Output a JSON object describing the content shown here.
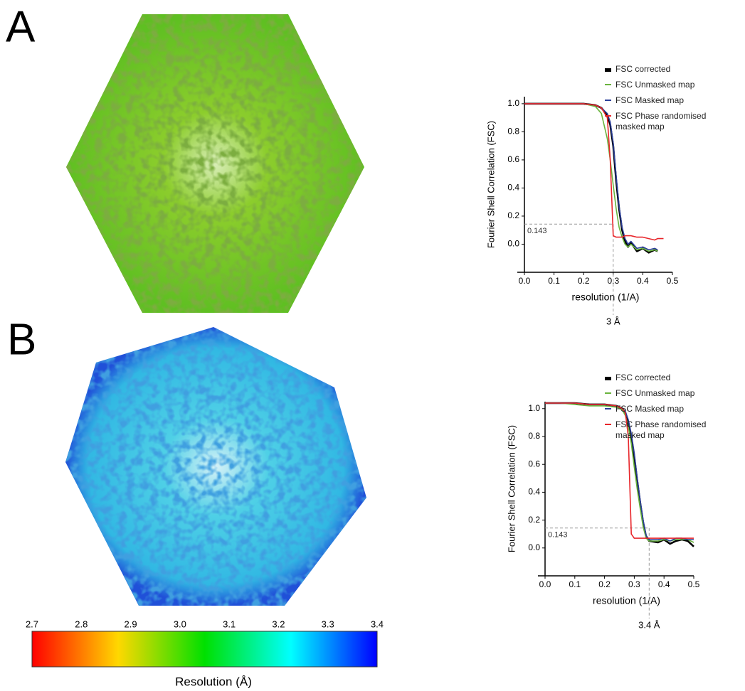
{
  "panel_labels": [
    "A",
    "B"
  ],
  "colorbar": {
    "label": "Resolution (Å)",
    "lim": [
      2.7,
      3.4
    ],
    "ticks": [
      2.7,
      2.8,
      2.9,
      {
        "value": 3,
        "label": "3.0"
      },
      3.1,
      3.2,
      3.3,
      3.4
    ],
    "colors": [
      "#ff0000",
      "#ffd800",
      "#00e000",
      "#00ffff",
      "#0000ff"
    ]
  },
  "chart_data": [
    {
      "type": "line",
      "xlabel": "resolution (1/A)",
      "ylabel": "Fourier Shell Correlation (FSC)",
      "x": [
        0,
        0.05,
        0.1,
        0.15,
        0.2,
        0.24,
        0.26,
        0.28,
        0.29,
        0.3,
        0.31,
        0.32,
        0.33,
        0.34,
        0.35,
        0.36,
        0.38,
        0.4,
        0.42,
        0.44,
        0.45,
        0.47
      ],
      "xlim": [
        0,
        0.5
      ],
      "xticks": [
        {
          "value": 0,
          "label": "0.0"
        },
        0.1,
        0.2,
        0.3,
        0.4,
        0.5
      ],
      "ylim": [
        -0.2,
        1.05
      ],
      "yticks": [
        {
          "value": 0,
          "label": "0.0"
        },
        0.2,
        0.4,
        0.6,
        0.8,
        {
          "value": 1,
          "label": "1.0"
        }
      ],
      "threshold": 0.143,
      "resolution_marker": {
        "x": 0.3,
        "label": "3 Å"
      },
      "series": [
        {
          "name": "FSC corrected",
          "color": "#000000",
          "values": [
            1,
            1,
            1,
            1,
            1,
            0.99,
            0.97,
            0.92,
            0.85,
            0.7,
            0.45,
            0.25,
            0.1,
            0.02,
            -0.02,
            0.01,
            -0.05,
            -0.03,
            -0.06,
            -0.04,
            -0.05,
            null
          ]
        },
        {
          "name": "FSC Unmasked map",
          "color": "#6ab43e",
          "values": [
            1,
            1,
            1,
            1,
            1,
            0.98,
            0.93,
            0.75,
            0.6,
            0.42,
            0.25,
            0.12,
            0.05,
            0,
            -0.02,
            0,
            -0.04,
            -0.03,
            -0.05,
            -0.04,
            -0.05,
            null
          ]
        },
        {
          "name": "FSC Masked map",
          "color": "#2b3f99",
          "values": [
            1,
            1,
            1,
            1,
            1,
            0.99,
            0.97,
            0.93,
            0.87,
            0.72,
            0.48,
            0.27,
            0.12,
            0.04,
            0,
            0.02,
            -0.03,
            -0.02,
            -0.04,
            -0.03,
            -0.04,
            null
          ]
        },
        {
          "name": "FSC Phase randomised masked map",
          "color": "#e8262b",
          "values": [
            1,
            1,
            1,
            1,
            1,
            0.99,
            0.97,
            0.9,
            0.6,
            0.06,
            0.05,
            0.05,
            0.05,
            0.06,
            0.06,
            0.06,
            0.05,
            0.05,
            0.04,
            0.03,
            0.04,
            0.04
          ]
        }
      ]
    },
    {
      "type": "line",
      "xlabel": "resolution (1/A)",
      "ylabel": "Fourier Shell Correlation (FSC)",
      "x": [
        0,
        0.05,
        0.1,
        0.15,
        0.2,
        0.24,
        0.26,
        0.27,
        0.28,
        0.29,
        0.3,
        0.31,
        0.32,
        0.33,
        0.34,
        0.35,
        0.38,
        0.4,
        0.42,
        0.44,
        0.46,
        0.48,
        0.5
      ],
      "xlim": [
        0,
        0.5
      ],
      "xticks": [
        {
          "value": 0,
          "label": "0.0"
        },
        0.1,
        0.2,
        0.3,
        0.4,
        0.5
      ],
      "ylim": [
        -0.2,
        1.05
      ],
      "yticks": [
        {
          "value": 0,
          "label": "0.0"
        },
        0.2,
        0.4,
        0.6,
        0.8,
        {
          "value": 1,
          "label": "1.0"
        }
      ],
      "threshold": 0.143,
      "resolution_marker": {
        "x": 0.35,
        "label": "3.4 Å"
      },
      "series": [
        {
          "name": "FSC corrected",
          "color": "#000000",
          "values": [
            1.04,
            1.04,
            1.04,
            1.03,
            1.03,
            1.02,
            1,
            0.97,
            0.9,
            0.8,
            0.65,
            0.48,
            0.32,
            0.18,
            0.08,
            0.05,
            0.04,
            0.06,
            0.03,
            0.05,
            0.06,
            0.05,
            0.01
          ]
        },
        {
          "name": "FSC Unmasked map",
          "color": "#6ab43e",
          "values": [
            1.04,
            1.04,
            1.03,
            1.02,
            1.02,
            1.01,
            0.99,
            0.95,
            0.87,
            0.75,
            0.58,
            0.42,
            0.28,
            0.15,
            0.07,
            0.05,
            0.05,
            0.06,
            0.05,
            0.06,
            0.06,
            0.06,
            0.04
          ]
        },
        {
          "name": "FSC Masked map",
          "color": "#2b3f99",
          "values": [
            1.04,
            1.04,
            1.04,
            1.03,
            1.03,
            1.02,
            1,
            0.98,
            0.92,
            0.82,
            0.68,
            0.5,
            0.34,
            0.2,
            0.09,
            0.06,
            0.06,
            0.07,
            0.05,
            0.07,
            0.07,
            0.06,
            0.06
          ]
        },
        {
          "name": "FSC Phase randomised masked map",
          "color": "#e8262b",
          "values": [
            1.04,
            1.04,
            1.04,
            1.03,
            1.03,
            1.02,
            1,
            0.97,
            0.8,
            0.1,
            0.07,
            0.07,
            0.07,
            0.07,
            0.07,
            0.07,
            0.07,
            0.07,
            0.07,
            0.07,
            0.07,
            0.07,
            0.07
          ]
        }
      ]
    }
  ]
}
